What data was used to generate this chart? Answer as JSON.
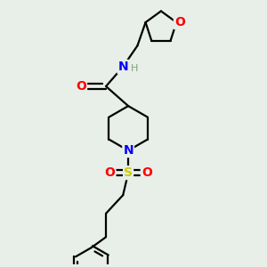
{
  "bg_color": "#e8eee8",
  "bond_color": "#000000",
  "N_color": "#0000ff",
  "O_color": "#ff0000",
  "S_color": "#cccc00",
  "H_color": "#7f9f7f",
  "line_width": 1.6,
  "figsize": [
    3.0,
    3.0
  ],
  "dpi": 100,
  "xlim": [
    0,
    10
  ],
  "ylim": [
    0,
    10
  ]
}
